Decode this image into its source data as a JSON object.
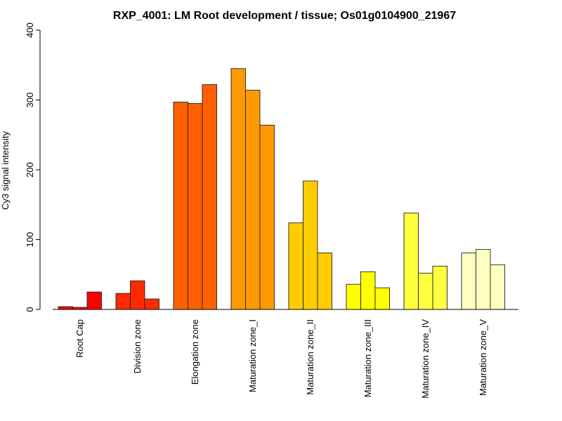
{
  "chart_data": {
    "type": "bar",
    "title": "RXP_4001: LM Root development / tissue; Os01g0104900_21967",
    "xlabel": "",
    "ylabel": "Cy3 signal intensity",
    "ylim": [
      0,
      400
    ],
    "yticks": [
      0,
      100,
      200,
      300,
      400
    ],
    "ytick_labels": [
      "0",
      "100",
      "200",
      "300",
      "400"
    ],
    "grid": false,
    "legend": "none",
    "replicates_per_group": 3,
    "categories": [
      "Root Cap",
      "Division zone",
      "Elongation zone",
      "Maturation zone_I",
      "Maturation zone_II",
      "Maturation zone_III",
      "Maturation zone_IV",
      "Maturation zone_V"
    ],
    "colors": [
      "#FF0000",
      "#FF2A00",
      "#FF6000",
      "#FF9900",
      "#FFCC00",
      "#FFFF00",
      "#FFFF40",
      "#FFFFC0"
    ],
    "values": [
      [
        4,
        3,
        25
      ],
      [
        23,
        41,
        15
      ],
      [
        297,
        295,
        322
      ],
      [
        345,
        314,
        264
      ],
      [
        124,
        184,
        81
      ],
      [
        36,
        54,
        31
      ],
      [
        138,
        52,
        62
      ],
      [
        81,
        86,
        64
      ]
    ]
  }
}
